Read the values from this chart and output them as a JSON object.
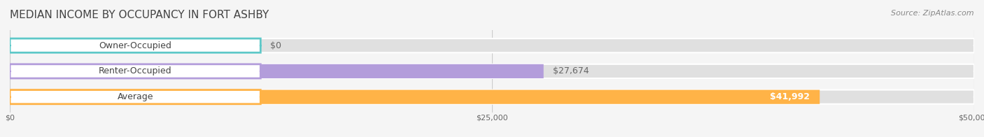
{
  "title": "MEDIAN INCOME BY OCCUPANCY IN FORT ASHBY",
  "source_text": "Source: ZipAtlas.com",
  "categories": [
    "Owner-Occupied",
    "Renter-Occupied",
    "Average"
  ],
  "values": [
    0,
    27674,
    41992
  ],
  "bar_colors": [
    "#5ec8c8",
    "#b39ddb",
    "#ffb347"
  ],
  "label_colors": [
    "#5ec8c8",
    "#b39ddb",
    "#ffb347"
  ],
  "value_labels": [
    "$0",
    "$27,674",
    "$41,992"
  ],
  "xlim": [
    0,
    50000
  ],
  "xticks": [
    0,
    25000,
    50000
  ],
  "xtick_labels": [
    "$0",
    "$25,000",
    "$50,000"
  ],
  "bar_height": 0.55,
  "background_color": "#f5f5f5",
  "bar_bg_color": "#e8e8e8",
  "title_fontsize": 11,
  "source_fontsize": 8,
  "label_fontsize": 9,
  "value_fontsize": 9,
  "tick_fontsize": 8
}
